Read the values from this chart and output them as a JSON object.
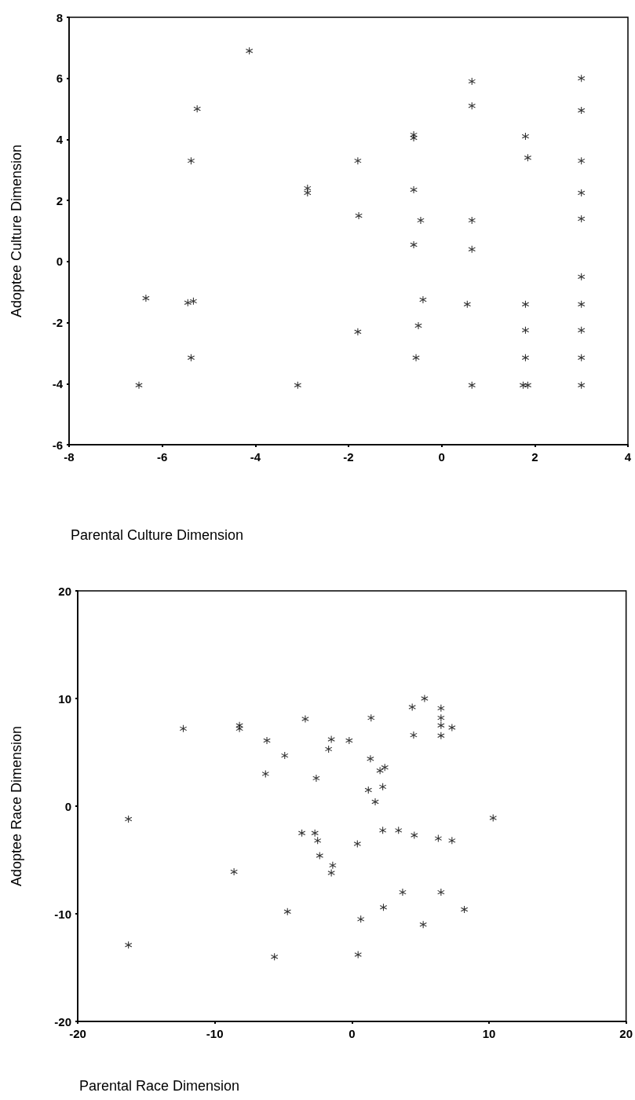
{
  "chart_data": [
    {
      "type": "scatter",
      "xlabel": "Parental Culture Dimension",
      "ylabel": "Adoptee Culture Dimension",
      "marker": "star",
      "grid": false,
      "xlim": [
        -8,
        4
      ],
      "xticks": [
        -8,
        -6,
        -4,
        -2,
        0,
        2,
        4
      ],
      "ylim": [
        -6,
        8
      ],
      "yticks": [
        -6,
        -4,
        -2,
        0,
        2,
        4,
        6,
        8
      ],
      "series": [
        {
          "color": "#000000",
          "x": [
            -4.13,
            -5.25,
            -5.38,
            -2.88,
            -2.88,
            -1.8,
            -1.78,
            -0.6,
            -0.6,
            -0.6,
            -0.45,
            -0.6,
            0.65,
            0.65,
            0.65,
            0.65,
            1.8,
            1.85,
            3.0,
            3.0,
            3.0,
            3.0,
            3.0,
            3.0,
            3.0,
            3.0,
            3.0,
            3.0,
            1.8,
            1.8,
            1.8,
            1.75,
            1.85,
            0.65,
            0.55,
            -0.4,
            -0.5,
            -0.55,
            -1.8,
            -3.09,
            -6.5,
            -6.35,
            -5.45,
            -5.33,
            -5.38
          ],
          "values": [
            6.9,
            5.0,
            3.3,
            2.4,
            2.25,
            3.3,
            1.5,
            4.15,
            4.05,
            2.35,
            1.35,
            0.55,
            5.9,
            5.1,
            1.35,
            0.4,
            4.1,
            3.4,
            6.0,
            4.95,
            3.3,
            2.25,
            1.4,
            -0.5,
            -1.4,
            -2.25,
            -3.15,
            -4.05,
            -1.4,
            -2.25,
            -3.15,
            -4.05,
            -4.05,
            -4.05,
            -1.4,
            -1.25,
            -2.1,
            -3.15,
            -2.3,
            -4.05,
            -4.05,
            -1.2,
            -1.35,
            -1.3,
            -3.15
          ]
        }
      ]
    },
    {
      "type": "scatter",
      "xlabel": "Parental Race Dimension",
      "ylabel": "Adoptee Race Dimension",
      "marker": "star",
      "grid": false,
      "xlim": [
        -20,
        20
      ],
      "xticks": [
        -20,
        -10,
        0,
        10,
        20
      ],
      "ylim": [
        -20,
        20
      ],
      "yticks": [
        -20,
        -10,
        0,
        10,
        20
      ],
      "series": [
        {
          "color": "#000000",
          "x": [
            -12.3,
            -8.2,
            -8.2,
            -6.2,
            -6.3,
            -4.9,
            -3.4,
            -2.6,
            -1.7,
            -1.5,
            -0.2,
            1.4,
            1.35,
            2.05,
            2.4,
            1.2,
            2.25,
            4.4,
            5.3,
            4.5,
            6.5,
            6.5,
            6.5,
            6.5,
            7.3,
            1.7,
            -16.3,
            -3.65,
            -2.7,
            -2.5,
            -2.35,
            -1.4,
            -1.5,
            0.4,
            2.25,
            3.4,
            4.55,
            6.3,
            7.3,
            10.3,
            -8.6,
            -4.7,
            3.7,
            6.5,
            2.3,
            8.2,
            0.65,
            5.2,
            -16.3,
            -5.65,
            0.45
          ],
          "values": [
            7.2,
            7.5,
            7.2,
            6.1,
            3.0,
            4.7,
            8.1,
            2.6,
            5.3,
            6.2,
            6.1,
            8.2,
            4.4,
            3.3,
            3.6,
            1.5,
            1.8,
            9.2,
            10.0,
            6.6,
            9.1,
            8.2,
            7.5,
            6.55,
            7.3,
            0.4,
            -1.2,
            -2.5,
            -2.5,
            -3.2,
            -4.6,
            -5.5,
            -6.2,
            -3.5,
            -2.25,
            -2.25,
            -2.7,
            -3.0,
            -3.2,
            -1.1,
            -6.1,
            -9.8,
            -8.0,
            -8.0,
            -9.4,
            -9.6,
            -10.5,
            -11.0,
            -12.9,
            -14.0,
            -13.8
          ]
        }
      ]
    }
  ]
}
